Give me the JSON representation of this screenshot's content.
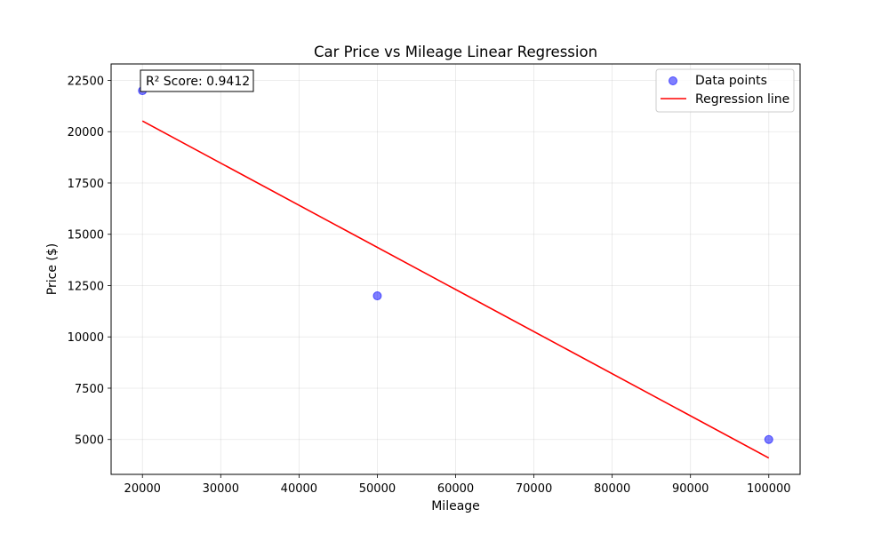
{
  "chart_data": {
    "type": "scatter",
    "title": "Car Price vs Mileage Linear Regression",
    "xlabel": "Mileage",
    "ylabel": "Price ($)",
    "xlim": [
      16000,
      104000
    ],
    "ylim": [
      3300,
      23300
    ],
    "xticks": [
      20000,
      30000,
      40000,
      50000,
      60000,
      70000,
      80000,
      90000,
      100000
    ],
    "yticks": [
      5000,
      7500,
      10000,
      12500,
      15000,
      17500,
      20000,
      22500
    ],
    "grid": true,
    "legend_position": "top-right",
    "annotation": "R² Score: 0.9412",
    "series": [
      {
        "name": "Data points",
        "kind": "scatter",
        "color": "#0000ff",
        "points": [
          {
            "x": 20000,
            "y": 22000
          },
          {
            "x": 50000,
            "y": 12000
          },
          {
            "x": 100000,
            "y": 5000
          }
        ]
      },
      {
        "name": "Regression line",
        "kind": "line",
        "color": "#ff0000",
        "points": [
          {
            "x": 20000,
            "y": 20520
          },
          {
            "x": 100000,
            "y": 4100
          }
        ]
      }
    ]
  }
}
